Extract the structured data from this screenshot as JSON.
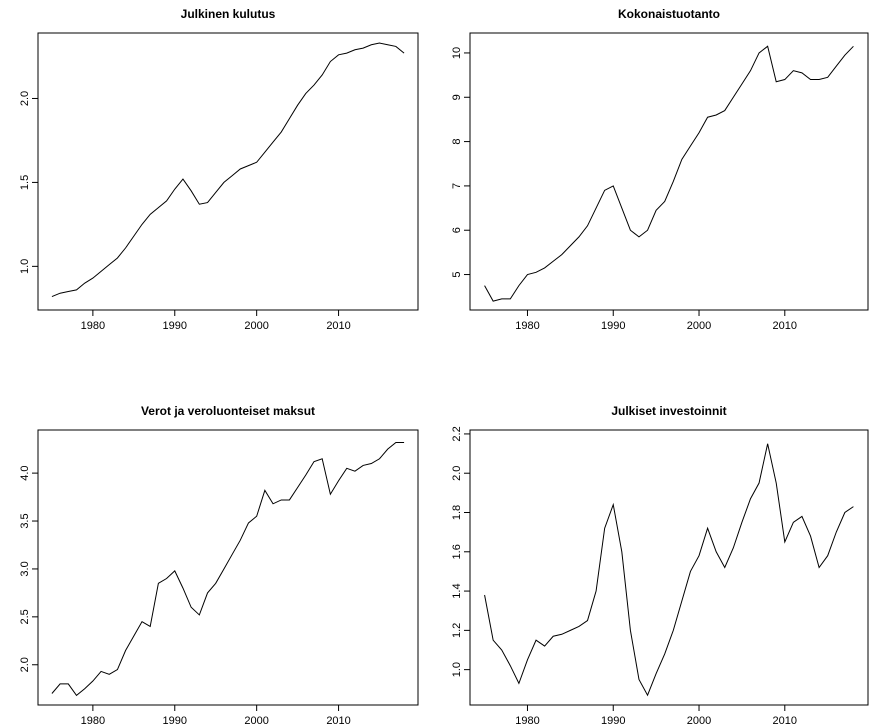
{
  "chart_data": [
    {
      "type": "line",
      "title": "Julkinen kulutus",
      "x": [
        1975,
        1976,
        1977,
        1978,
        1979,
        1980,
        1981,
        1982,
        1983,
        1984,
        1985,
        1986,
        1987,
        1988,
        1989,
        1990,
        1991,
        1992,
        1993,
        1994,
        1995,
        1996,
        1997,
        1998,
        1999,
        2000,
        2001,
        2002,
        2003,
        2004,
        2005,
        2006,
        2007,
        2008,
        2009,
        2010,
        2011,
        2012,
        2013,
        2014,
        2015,
        2016,
        2017,
        2018
      ],
      "values": [
        0.82,
        0.84,
        0.85,
        0.86,
        0.9,
        0.93,
        0.97,
        1.01,
        1.05,
        1.11,
        1.18,
        1.25,
        1.31,
        1.35,
        1.39,
        1.46,
        1.52,
        1.45,
        1.37,
        1.38,
        1.44,
        1.5,
        1.54,
        1.58,
        1.6,
        1.62,
        1.68,
        1.74,
        1.8,
        1.88,
        1.96,
        2.03,
        2.08,
        2.14,
        2.22,
        2.26,
        2.27,
        2.29,
        2.3,
        2.32,
        2.33,
        2.32,
        2.31,
        2.27
      ],
      "color": "#000000",
      "xlim": [
        1973.3,
        2019.7
      ],
      "xticks": [
        1980,
        1990,
        2000,
        2010
      ],
      "ylim": [
        0.74,
        2.39
      ],
      "yticks": [
        {
          "value": 1,
          "label": "1.0"
        },
        {
          "value": 1.5,
          "label": "1.5"
        },
        {
          "value": 2,
          "label": "2.0"
        }
      ]
    },
    {
      "type": "line",
      "title": "Kokonaistuotanto",
      "x": [
        1975,
        1976,
        1977,
        1978,
        1979,
        1980,
        1981,
        1982,
        1983,
        1984,
        1985,
        1986,
        1987,
        1988,
        1989,
        1990,
        1991,
        1992,
        1993,
        1994,
        1995,
        1996,
        1997,
        1998,
        1999,
        2000,
        2001,
        2002,
        2003,
        2004,
        2005,
        2006,
        2007,
        2008,
        2009,
        2010,
        2011,
        2012,
        2013,
        2014,
        2015,
        2016,
        2017,
        2018
      ],
      "values": [
        4.75,
        4.4,
        4.45,
        4.45,
        4.75,
        5.0,
        5.05,
        5.15,
        5.3,
        5.45,
        5.65,
        5.85,
        6.1,
        6.5,
        6.9,
        7.0,
        6.5,
        6.0,
        5.85,
        6.0,
        6.45,
        6.65,
        7.1,
        7.6,
        7.9,
        8.2,
        8.55,
        8.6,
        8.7,
        9.0,
        9.3,
        9.6,
        10.0,
        10.15,
        9.35,
        9.4,
        9.6,
        9.55,
        9.4,
        9.4,
        9.45,
        9.7,
        9.95,
        10.15
      ],
      "color": "#000000",
      "xlim": [
        1973.3,
        2019.7
      ],
      "xticks": [
        1980,
        1990,
        2000,
        2010
      ],
      "ylim": [
        4.2,
        10.45
      ],
      "yticks": [
        5,
        6,
        7,
        8,
        9,
        10
      ]
    },
    {
      "type": "line",
      "title": "Verot ja veroluonteiset maksut",
      "x": [
        1975,
        1976,
        1977,
        1978,
        1979,
        1980,
        1981,
        1982,
        1983,
        1984,
        1985,
        1986,
        1987,
        1988,
        1989,
        1990,
        1991,
        1992,
        1993,
        1994,
        1995,
        1996,
        1997,
        1998,
        1999,
        2000,
        2001,
        2002,
        2003,
        2004,
        2005,
        2006,
        2007,
        2008,
        2009,
        2010,
        2011,
        2012,
        2013,
        2014,
        2015,
        2016,
        2017,
        2018
      ],
      "values": [
        1.7,
        1.8,
        1.8,
        1.68,
        1.75,
        1.83,
        1.93,
        1.9,
        1.95,
        2.15,
        2.3,
        2.45,
        2.4,
        2.85,
        2.9,
        2.98,
        2.8,
        2.6,
        2.52,
        2.75,
        2.85,
        3.0,
        3.15,
        3.3,
        3.48,
        3.55,
        3.82,
        3.68,
        3.72,
        3.72,
        3.85,
        3.98,
        4.12,
        4.15,
        3.78,
        3.92,
        4.05,
        4.02,
        4.08,
        4.1,
        4.15,
        4.25,
        4.32,
        4.32
      ],
      "color": "#000000",
      "xlim": [
        1973.3,
        2019.7
      ],
      "xticks": [
        1980,
        1990,
        2000,
        2010
      ],
      "ylim": [
        1.58,
        4.45
      ],
      "yticks": [
        {
          "value": 2,
          "label": "2.0"
        },
        {
          "value": 2.5,
          "label": "2.5"
        },
        {
          "value": 3,
          "label": "3.0"
        },
        {
          "value": 3.5,
          "label": "3.5"
        },
        {
          "value": 4,
          "label": "4.0"
        }
      ]
    },
    {
      "type": "line",
      "title": "Julkiset investoinnit",
      "x": [
        1975,
        1976,
        1977,
        1978,
        1979,
        1980,
        1981,
        1982,
        1983,
        1984,
        1985,
        1986,
        1987,
        1988,
        1989,
        1990,
        1991,
        1992,
        1993,
        1994,
        1995,
        1996,
        1997,
        1998,
        1999,
        2000,
        2001,
        2002,
        2003,
        2004,
        2005,
        2006,
        2007,
        2008,
        2009,
        2010,
        2011,
        2012,
        2013,
        2014,
        2015,
        2016,
        2017,
        2018
      ],
      "values": [
        1.38,
        1.15,
        1.1,
        1.02,
        0.93,
        1.05,
        1.15,
        1.12,
        1.17,
        1.18,
        1.2,
        1.22,
        1.25,
        1.4,
        1.72,
        1.84,
        1.6,
        1.2,
        0.95,
        0.87,
        0.98,
        1.08,
        1.2,
        1.35,
        1.5,
        1.58,
        1.72,
        1.6,
        1.52,
        1.62,
        1.75,
        1.87,
        1.95,
        2.15,
        1.95,
        1.65,
        1.75,
        1.78,
        1.68,
        1.52,
        1.58,
        1.7,
        1.8,
        1.83
      ],
      "color": "#000000",
      "xlim": [
        1973.3,
        2019.7
      ],
      "xticks": [
        1980,
        1990,
        2000,
        2010
      ],
      "ylim": [
        0.82,
        2.22
      ],
      "yticks": [
        {
          "value": 1,
          "label": "1.0"
        },
        {
          "value": 1.2,
          "label": "1.2"
        },
        {
          "value": 1.4,
          "label": "1.4"
        },
        {
          "value": 1.6,
          "label": "1.6"
        },
        {
          "value": 1.8,
          "label": "1.8"
        },
        {
          "value": 2,
          "label": "2.0"
        },
        {
          "value": 2.2,
          "label": "2.2"
        }
      ]
    }
  ]
}
